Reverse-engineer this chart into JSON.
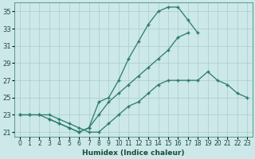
{
  "xlabel": "Humidex (Indice chaleur)",
  "background_color": "#cce8e8",
  "grid_color": "#aacccc",
  "line_color": "#2a7a6a",
  "xlim": [
    -0.5,
    23.5
  ],
  "ylim": [
    20.5,
    36.0
  ],
  "yticks": [
    21,
    23,
    25,
    27,
    29,
    31,
    33,
    35
  ],
  "xticks": [
    0,
    1,
    2,
    3,
    4,
    5,
    6,
    7,
    8,
    9,
    10,
    11,
    12,
    13,
    14,
    15,
    16,
    17,
    18,
    19,
    20,
    21,
    22,
    23
  ],
  "line1_x": [
    0,
    1,
    2,
    3,
    4,
    5,
    6,
    7,
    8,
    9,
    10,
    11,
    12,
    13,
    14,
    15,
    16,
    17,
    18,
    19,
    20,
    21,
    22,
    23
  ],
  "line1_y": [
    23,
    23,
    23,
    23,
    22.5,
    22,
    21.5,
    21,
    21,
    22,
    23,
    24,
    24.5,
    25.5,
    26.5,
    27,
    27,
    27,
    27,
    28,
    27,
    26.5,
    25.5,
    25
  ],
  "line2_x": [
    0,
    1,
    2,
    3,
    4,
    5,
    6,
    7,
    8,
    9,
    10,
    11,
    12,
    13,
    14,
    15,
    16,
    17,
    18
  ],
  "line2_y": [
    23,
    23,
    23,
    22.5,
    22,
    21.5,
    21,
    21.5,
    24.5,
    25,
    27,
    29.5,
    31.5,
    33.5,
    35,
    35.5,
    35.5,
    34,
    32.5
  ],
  "line3_x": [
    3,
    4,
    5,
    6,
    7,
    8,
    9,
    10,
    11,
    12,
    13,
    14,
    15,
    16,
    17,
    18,
    19,
    20,
    21,
    22,
    23
  ],
  "line3_y": [
    22.5,
    22,
    21.5,
    21,
    21.5,
    23,
    24.5,
    25.5,
    26.5,
    27.5,
    28.5,
    29.5,
    30.5,
    32,
    32.5,
    null,
    null,
    null,
    null,
    null,
    null
  ]
}
